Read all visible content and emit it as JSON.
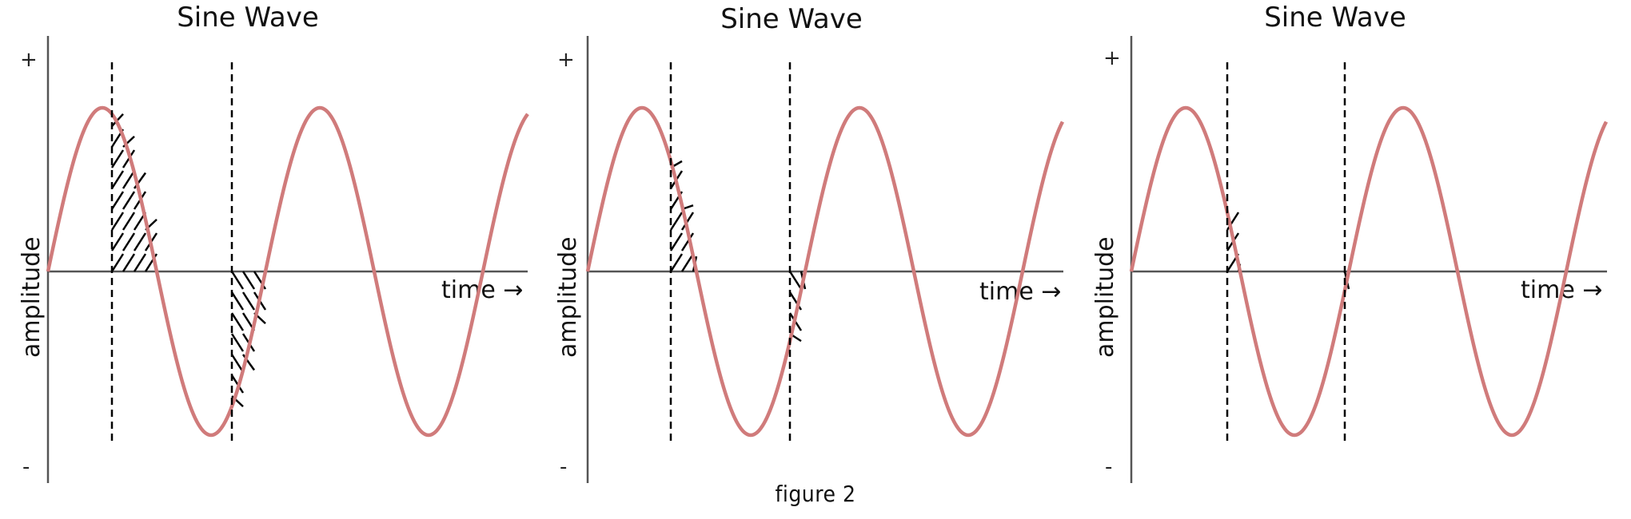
{
  "figure_caption": "figure 2",
  "colors": {
    "wave": "#d07b7b",
    "axis": "#555555",
    "guide": "#000000",
    "hatch": "#000000"
  },
  "panels": [
    {
      "title": "Sine Wave",
      "ylabel": "amplitude",
      "plus": "+",
      "minus": "-",
      "xlabel": "time",
      "arrow": "→"
    },
    {
      "title": "Sine Wave",
      "ylabel": "amplitude",
      "plus": "+",
      "minus": "-",
      "xlabel": "time",
      "arrow": "→"
    },
    {
      "title": "Sine Wave",
      "ylabel": "amplitude",
      "plus": "+",
      "minus": "-",
      "xlabel": "time",
      "arrow": "→"
    }
  ]
}
